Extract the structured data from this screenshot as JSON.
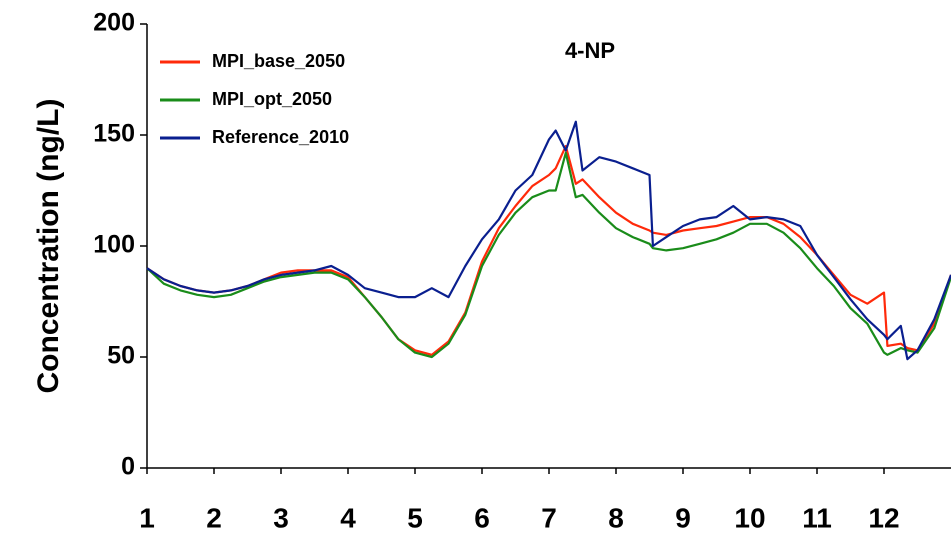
{
  "chart_data": {
    "type": "line",
    "title": "4-NP",
    "ylabel": "Concentration (ng/L)",
    "x": [
      1,
      1.25,
      1.5,
      1.75,
      2,
      2.25,
      2.5,
      2.75,
      3,
      3.25,
      3.5,
      3.75,
      4,
      4.25,
      4.5,
      4.75,
      5,
      5.25,
      5.5,
      5.75,
      6,
      6.25,
      6.5,
      6.75,
      7,
      7.1,
      7.25,
      7.4,
      7.5,
      7.75,
      8,
      8.25,
      8.5,
      8.55,
      8.75,
      9,
      9.25,
      9.5,
      9.75,
      10,
      10.25,
      10.5,
      10.75,
      11,
      11.25,
      11.5,
      11.75,
      12,
      12.05,
      12.25,
      12.35,
      12.5,
      12.75,
      13
    ],
    "series": [
      {
        "name": "MPI_base_2050",
        "color": "#ff2a0a",
        "values": [
          90,
          85,
          82,
          80,
          79,
          80,
          82,
          85,
          88,
          89,
          89,
          89,
          86,
          77,
          68,
          58,
          53,
          51,
          57,
          70,
          93,
          108,
          118,
          127,
          132,
          135,
          145,
          128,
          130,
          122,
          115,
          110,
          107,
          106,
          105,
          107,
          108,
          109,
          111,
          113,
          113,
          110,
          104,
          96,
          87,
          78,
          74,
          79,
          55,
          56,
          54,
          53,
          65,
          87
        ]
      },
      {
        "name": "MPI_opt_2050",
        "color": "#1a8c1a",
        "values": [
          90,
          83,
          80,
          78,
          77,
          78,
          81,
          84,
          86,
          87,
          88,
          88,
          85,
          77,
          68,
          58,
          52,
          50,
          56,
          69,
          91,
          105,
          115,
          122,
          125,
          125,
          142,
          122,
          123,
          115,
          108,
          104,
          101,
          99,
          98,
          99,
          101,
          103,
          106,
          110,
          110,
          106,
          99,
          90,
          82,
          72,
          65,
          52,
          51,
          54,
          53,
          52,
          63,
          86
        ]
      },
      {
        "name": "Reference_2010",
        "color": "#0a1f8f",
        "values": [
          90,
          85,
          82,
          80,
          79,
          80,
          82,
          85,
          87,
          88,
          89,
          91,
          87,
          81,
          79,
          77,
          77,
          81,
          77,
          91,
          103,
          112,
          125,
          132,
          148,
          152,
          143,
          156,
          134,
          140,
          138,
          135,
          132,
          100,
          104,
          109,
          112,
          113,
          118,
          112,
          113,
          112,
          109,
          96,
          86,
          76,
          67,
          60,
          58,
          64,
          49,
          53,
          67,
          87
        ]
      }
    ],
    "xlim": [
      1,
      13
    ],
    "xticks": [
      1,
      2,
      3,
      4,
      5,
      6,
      7,
      8,
      9,
      10,
      11,
      12
    ],
    "ylim": [
      0,
      200
    ],
    "yticks": [
      0,
      50,
      100,
      150,
      200
    ]
  }
}
